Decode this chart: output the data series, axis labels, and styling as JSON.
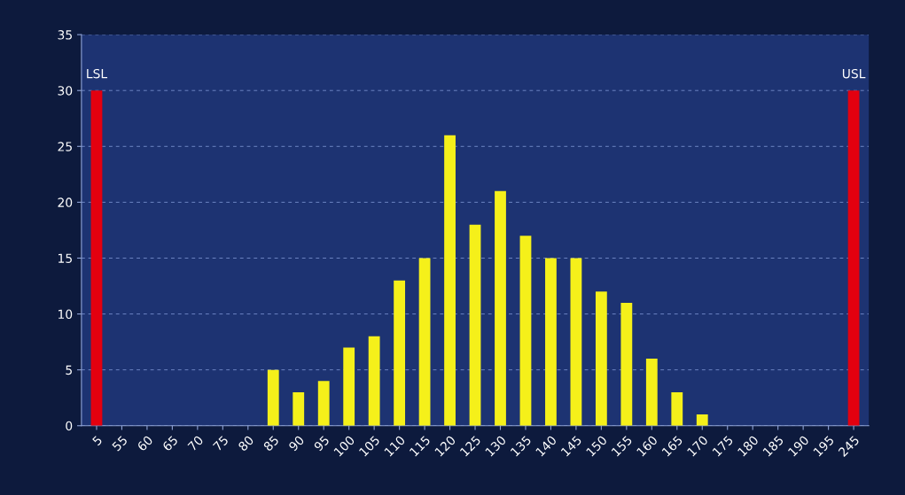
{
  "chart_data": {
    "type": "bar",
    "categories": [
      "5",
      "55",
      "60",
      "65",
      "70",
      "75",
      "80",
      "85",
      "90",
      "95",
      "100",
      "105",
      "110",
      "115",
      "120",
      "125",
      "130",
      "135",
      "140",
      "145",
      "150",
      "155",
      "160",
      "165",
      "170",
      "175",
      "180",
      "185",
      "190",
      "195",
      "245"
    ],
    "values": [
      30,
      0,
      0,
      0,
      0,
      0,
      0,
      5,
      3,
      4,
      7,
      8,
      13,
      15,
      26,
      18,
      21,
      17,
      15,
      15,
      12,
      11,
      6,
      3,
      1,
      0,
      0,
      0,
      0,
      0,
      30
    ],
    "colors": [
      "#e3000f",
      "#f5f01a",
      "#f5f01a",
      "#f5f01a",
      "#f5f01a",
      "#f5f01a",
      "#f5f01a",
      "#f5f01a",
      "#f5f01a",
      "#f5f01a",
      "#f5f01a",
      "#f5f01a",
      "#f5f01a",
      "#f5f01a",
      "#f5f01a",
      "#f5f01a",
      "#f5f01a",
      "#f5f01a",
      "#f5f01a",
      "#f5f01a",
      "#f5f01a",
      "#f5f01a",
      "#f5f01a",
      "#f5f01a",
      "#f5f01a",
      "#f5f01a",
      "#f5f01a",
      "#f5f01a",
      "#f5f01a",
      "#f5f01a",
      "#e3000f"
    ],
    "annotations": [
      {
        "text": "LSL",
        "x": "5",
        "y": 30
      },
      {
        "text": "USL",
        "x": "245",
        "y": 30
      }
    ],
    "ylim": [
      0,
      35
    ],
    "yticks": [
      0,
      5,
      10,
      15,
      20,
      25,
      30,
      35
    ],
    "grid": "y"
  }
}
